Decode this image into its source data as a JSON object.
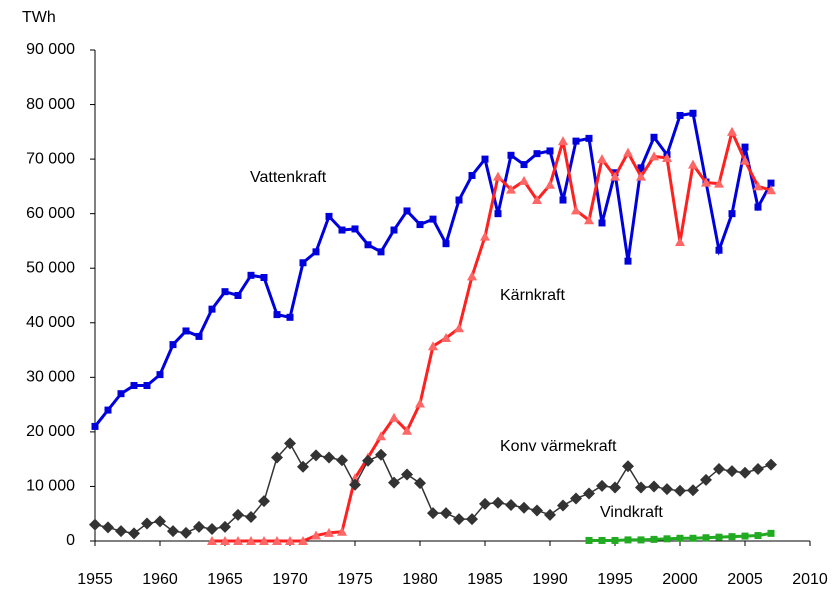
{
  "chart_data": {
    "type": "line",
    "y_label": "TWh",
    "x": [
      1955,
      1956,
      1957,
      1958,
      1959,
      1960,
      1961,
      1962,
      1963,
      1964,
      1965,
      1966,
      1967,
      1968,
      1969,
      1970,
      1971,
      1972,
      1973,
      1974,
      1975,
      1976,
      1977,
      1978,
      1979,
      1980,
      1981,
      1982,
      1983,
      1984,
      1985,
      1986,
      1987,
      1988,
      1989,
      1990,
      1991,
      1992,
      1993,
      1994,
      1995,
      1996,
      1997,
      1998,
      1999,
      2000,
      2001,
      2002,
      2003,
      2004,
      2005,
      2006,
      2007
    ],
    "xlim": [
      1955,
      2010
    ],
    "xticks": [
      1955,
      1960,
      1965,
      1970,
      1975,
      1980,
      1985,
      1990,
      1995,
      2000,
      2005,
      2010
    ],
    "ylim": [
      0,
      90000
    ],
    "yticks": [
      0,
      {
        "value": 10000,
        "label": "10 000"
      },
      {
        "value": 20000,
        "label": "20 000"
      },
      {
        "value": 30000,
        "label": "30 000"
      },
      {
        "value": 40000,
        "label": "40 000"
      },
      {
        "value": 50000,
        "label": "50 000"
      },
      {
        "value": 60000,
        "label": "60 000"
      },
      {
        "value": 70000,
        "label": "70 000"
      },
      {
        "value": 80000,
        "label": "80 000"
      },
      {
        "value": 90000,
        "label": "90 000"
      }
    ],
    "series": [
      {
        "name": "Vattenkraft",
        "color": "#0000dd",
        "marker": "square",
        "values": [
          21000,
          24000,
          27000,
          28500,
          28500,
          30500,
          36000,
          38500,
          37500,
          42500,
          45700,
          45000,
          48700,
          48300,
          41500,
          41000,
          51000,
          53000,
          59500,
          57000,
          57200,
          54300,
          53000,
          57000,
          60500,
          58000,
          59000,
          54500,
          62500,
          67000,
          70000,
          60000,
          70700,
          69000,
          71000,
          71500,
          62500,
          73300,
          73800,
          58300,
          67500,
          51300,
          68400,
          74000,
          70800,
          78000,
          78400,
          65800,
          53300,
          60000,
          72200,
          61200,
          65600
        ]
      },
      {
        "name": "Kärnkraft",
        "color": "#ff2020",
        "marker": "triangle",
        "values": [
          null,
          null,
          null,
          null,
          null,
          null,
          null,
          null,
          null,
          0,
          0,
          0,
          0,
          0,
          0,
          0,
          0,
          1000,
          1500,
          1700,
          11500,
          15300,
          19200,
          22600,
          20200,
          25200,
          35700,
          37200,
          39000,
          48500,
          55800,
          66800,
          64400,
          66000,
          62500,
          65300,
          73300,
          60600,
          58800,
          70000,
          66800,
          71200,
          66800,
          70500,
          70200,
          54800,
          69000,
          65700,
          65500,
          75000,
          69700,
          65000,
          64300
        ]
      },
      {
        "name": "Konv värmekraft",
        "color": "#333333",
        "marker": "diamond",
        "values": [
          3000,
          2500,
          1800,
          1400,
          3200,
          3600,
          1800,
          1500,
          2600,
          2200,
          2600,
          4800,
          4400,
          7300,
          15300,
          17900,
          13600,
          15700,
          15300,
          14800,
          10300,
          14700,
          15800,
          10700,
          12200,
          10600,
          5100,
          5100,
          4000,
          4000,
          6800,
          7000,
          6600,
          6100,
          5600,
          4800,
          6500,
          7800,
          8700,
          10100,
          9800,
          13700,
          9800,
          10000,
          9500,
          9200,
          9300,
          11200,
          13200,
          12800,
          12500,
          13200,
          14000
        ]
      },
      {
        "name": "Vindkraft",
        "color": "#22aa22",
        "marker": "square",
        "values": [
          null,
          null,
          null,
          null,
          null,
          null,
          null,
          null,
          null,
          null,
          null,
          null,
          null,
          null,
          null,
          null,
          null,
          null,
          null,
          null,
          null,
          null,
          null,
          null,
          null,
          null,
          null,
          null,
          null,
          null,
          null,
          null,
          null,
          null,
          null,
          null,
          null,
          null,
          100,
          100,
          100,
          200,
          200,
          300,
          400,
          500,
          500,
          600,
          700,
          800,
          900,
          1000,
          1400
        ]
      }
    ]
  }
}
